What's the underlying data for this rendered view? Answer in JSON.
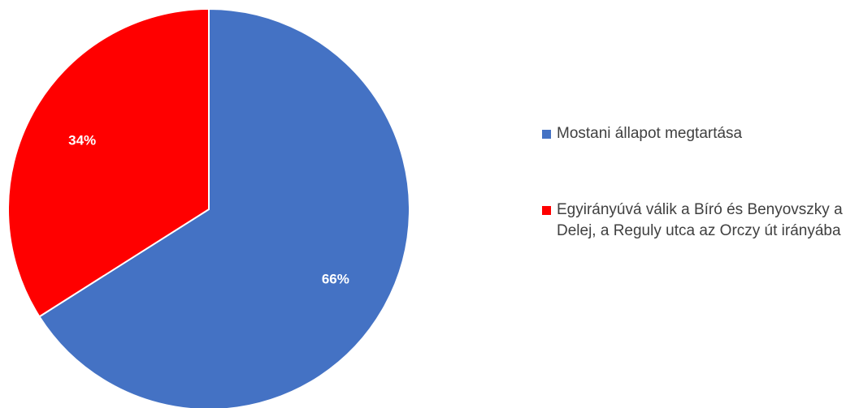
{
  "chart_data": {
    "type": "pie",
    "series": [
      {
        "values": [
          66,
          34
        ],
        "labels": [
          "66%",
          "34%"
        ]
      }
    ],
    "categories": [
      "Mostani állapot megtartása",
      "Egyirányúvá válik a Bíró és Benyovszky a Delej, a Reguly utca az Orczy út irányába"
    ],
    "colors": [
      "#4472C4",
      "#FF0000"
    ],
    "start_angle": "12 o'clock",
    "direction": "clockwise",
    "legend_position": "right",
    "title": ""
  },
  "legend": {
    "items": [
      {
        "label": "Mostani állapot megtartása",
        "color": "#4472C4"
      },
      {
        "label": "Egyirányúvá válik a Bíró és Benyovszky a Delej, a Reguly utca az Orczy út irányába",
        "color": "#FF0000"
      }
    ]
  }
}
